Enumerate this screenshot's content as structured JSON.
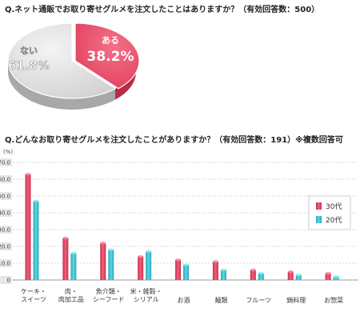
{
  "question1": "Q.ネット通販でお取り寄せグルメを注文したことはありますか？（有効回答数：500）",
  "question2": "Q.どんなお取り寄せグルメを注文したことがありますか？（有効回答数：191）※複数回答可",
  "chart_data": [
    {
      "type": "pie",
      "slices": [
        {
          "label": "ある",
          "value": 38.2,
          "value_label": "38.2%",
          "color": "#e8506c"
        },
        {
          "label": "ない",
          "value": 61.8,
          "value_label": "61.8%",
          "color": "#d8d8d8"
        }
      ]
    },
    {
      "type": "bar",
      "ylabel": "(%)",
      "ylim": [
        0,
        70
      ],
      "yticks": [
        "0",
        "10.0",
        "20.0",
        "30.0",
        "40.0",
        "50.0",
        "60.0",
        "70.0"
      ],
      "legend_position": "right",
      "categories": [
        [
          "ケーキ・",
          "スイーツ"
        ],
        [
          "肉・",
          "肉加工品"
        ],
        [
          "魚介類・",
          "シーフード"
        ],
        [
          "米・雑穀・",
          "シリアル"
        ],
        [
          "お酒"
        ],
        [
          "麺類"
        ],
        [
          "フルーツ"
        ],
        [
          "鍋料理"
        ],
        [
          "お惣菜"
        ]
      ],
      "series": [
        {
          "name": "30代",
          "color": "#e8506c",
          "values": [
            63,
            25,
            22,
            14,
            12,
            11,
            6,
            5,
            4
          ]
        },
        {
          "name": "20代",
          "color": "#3ec4d4",
          "values": [
            47,
            16,
            18,
            17,
            9,
            6,
            4,
            3,
            2
          ]
        }
      ]
    }
  ]
}
